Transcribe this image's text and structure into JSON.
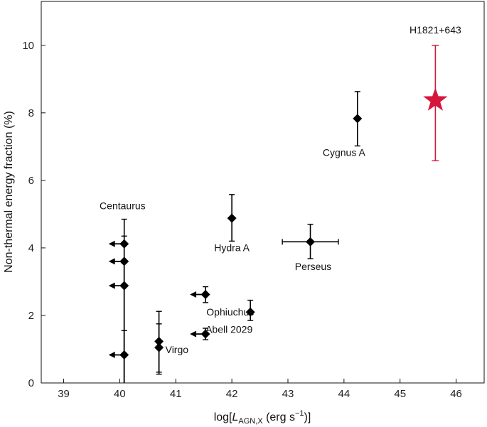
{
  "chart_data": {
    "type": "scatter",
    "xlabel_parts": [
      "log[",
      "L",
      "AGN,X",
      " (erg s",
      "−1",
      ")]"
    ],
    "ylabel": "Non-thermal energy fraction (%)",
    "xlim": [
      38.6,
      46.5
    ],
    "ylim": [
      0,
      11.3
    ],
    "x_ticks": [
      "39",
      "40",
      "41",
      "42",
      "43",
      "44",
      "45",
      "46"
    ],
    "y_ticks": [
      "0",
      "2",
      "4",
      "6",
      "8",
      "10"
    ],
    "grid": false,
    "colors": {
      "black": "#000000",
      "highlight": "#d6163c"
    },
    "points": [
      {
        "label": "Cygnus A",
        "x": 44.24,
        "y": 7.83,
        "y_err": [
          7.02,
          8.63
        ],
        "marker": "diamond"
      },
      {
        "label": "Hydra A",
        "x": 42.0,
        "y": 4.88,
        "y_err": [
          4.2,
          5.58
        ],
        "marker": "diamond"
      },
      {
        "label": "Perseus",
        "x": 43.4,
        "y": 4.18,
        "y_err": [
          3.68,
          4.7
        ],
        "x_err": [
          42.9,
          43.9
        ],
        "marker": "diamond"
      },
      {
        "label": "Abell 2029",
        "x": 42.33,
        "y": 2.1,
        "y_err": [
          1.85,
          2.45
        ],
        "marker": "diamond"
      },
      {
        "x": 41.53,
        "y": 2.62,
        "y_err": [
          2.38,
          2.85
        ],
        "upper_limit_x": true,
        "marker": "diamond"
      },
      {
        "x": 41.53,
        "y": 1.45,
        "y_err": [
          1.28,
          1.62
        ],
        "upper_limit_x": true,
        "marker": "diamond"
      },
      {
        "x": 40.08,
        "y": 4.12,
        "y_err": [
          0,
          4.85
        ],
        "upper_limit_x": true,
        "marker": "diamond"
      },
      {
        "x": 40.08,
        "y": 3.6,
        "y_err": [
          0,
          4.35
        ],
        "upper_limit_x": true,
        "marker": "diamond"
      },
      {
        "x": 40.08,
        "y": 2.88,
        "y_err": [
          0,
          3.55
        ],
        "upper_limit_x": true,
        "marker": "diamond"
      },
      {
        "x": 40.08,
        "y": 0.83,
        "y_err": [
          0,
          1.55
        ],
        "upper_limit_x": true,
        "marker": "diamond"
      },
      {
        "x": 40.7,
        "y": 1.23,
        "y_err": [
          0.32,
          2.12
        ],
        "marker": "diamond"
      },
      {
        "x": 40.7,
        "y": 1.05,
        "y_err": [
          0.26,
          1.75
        ],
        "marker": "diamond"
      },
      {
        "label": "H1821+643",
        "x": 45.63,
        "y": 8.37,
        "y_err": [
          6.58,
          10.0
        ],
        "marker": "star",
        "color": "highlight"
      }
    ],
    "annotations": [
      {
        "text": "Centaurus",
        "x": 40.05,
        "y": 5.15
      },
      {
        "text": "Virgo",
        "x": 41.02,
        "y": 0.88
      },
      {
        "text": "Ophiuchus",
        "x": 41.97,
        "y": 2.0
      },
      {
        "text": "Abell 2029",
        "x": 41.95,
        "y": 1.48
      },
      {
        "text": "Hydra A",
        "x": 42.0,
        "y": 3.9
      },
      {
        "text": "Perseus",
        "x": 43.45,
        "y": 3.35
      },
      {
        "text": "Cygnus A",
        "x": 44.0,
        "y": 6.72
      },
      {
        "text": "H1821+643",
        "x": 45.63,
        "y": 10.35,
        "color": "highlight"
      }
    ]
  }
}
